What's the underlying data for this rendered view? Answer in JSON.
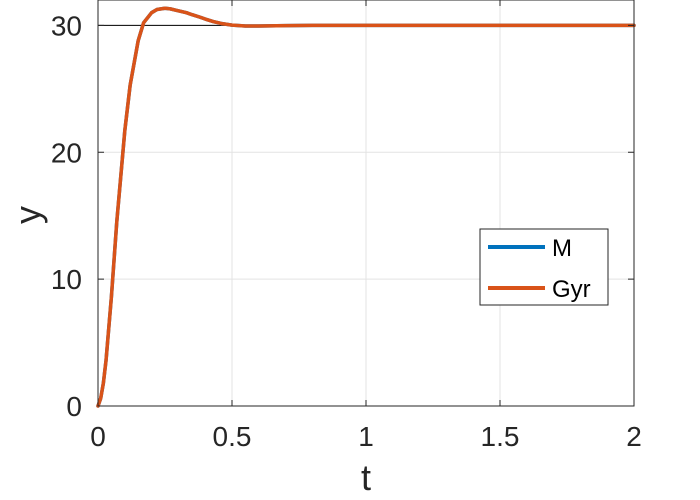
{
  "chart_data": {
    "type": "line",
    "xlabel": "t",
    "ylabel": "y",
    "xlim": [
      0,
      2
    ],
    "ylim": [
      0,
      32
    ],
    "xticks": [
      0,
      0.5,
      1,
      1.5,
      2
    ],
    "xtick_labels": [
      "0",
      "0.5",
      "1",
      "1.5",
      "2"
    ],
    "yticks": [
      0,
      10,
      20,
      30
    ],
    "ytick_labels": [
      "0",
      "10",
      "20",
      "30"
    ],
    "grid": true,
    "legend_position": "center-right",
    "reference_line": {
      "y": 30,
      "color": "#000000"
    },
    "x": [
      0,
      0.01,
      0.02,
      0.03,
      0.05,
      0.07,
      0.1,
      0.12,
      0.15,
      0.17,
      0.2,
      0.22,
      0.25,
      0.27,
      0.29,
      0.31,
      0.33,
      0.35,
      0.38,
      0.4,
      0.43,
      0.46,
      0.5,
      0.55,
      0.6,
      0.7,
      0.8,
      1.0,
      1.2,
      1.5,
      1.8,
      2.0
    ],
    "series": [
      {
        "name": "M",
        "color": "#0072BD",
        "values": [
          0,
          0.6,
          1.8,
          3.6,
          8.6,
          14.5,
          21.7,
          25.3,
          28.8,
          30.2,
          31.0,
          31.25,
          31.35,
          31.3,
          31.2,
          31.1,
          31.0,
          30.85,
          30.65,
          30.5,
          30.3,
          30.15,
          30.02,
          29.95,
          29.95,
          29.98,
          30.0,
          30.0,
          30.0,
          30.0,
          30.0,
          30.0
        ]
      },
      {
        "name": "Gyr",
        "color": "#D95319",
        "values": [
          0,
          0.6,
          1.8,
          3.6,
          8.6,
          14.5,
          21.7,
          25.3,
          28.8,
          30.2,
          31.0,
          31.25,
          31.35,
          31.3,
          31.2,
          31.1,
          31.0,
          30.85,
          30.65,
          30.5,
          30.3,
          30.15,
          30.02,
          29.95,
          29.95,
          29.98,
          30.0,
          30.0,
          30.0,
          30.0,
          30.0,
          30.0
        ]
      }
    ]
  }
}
